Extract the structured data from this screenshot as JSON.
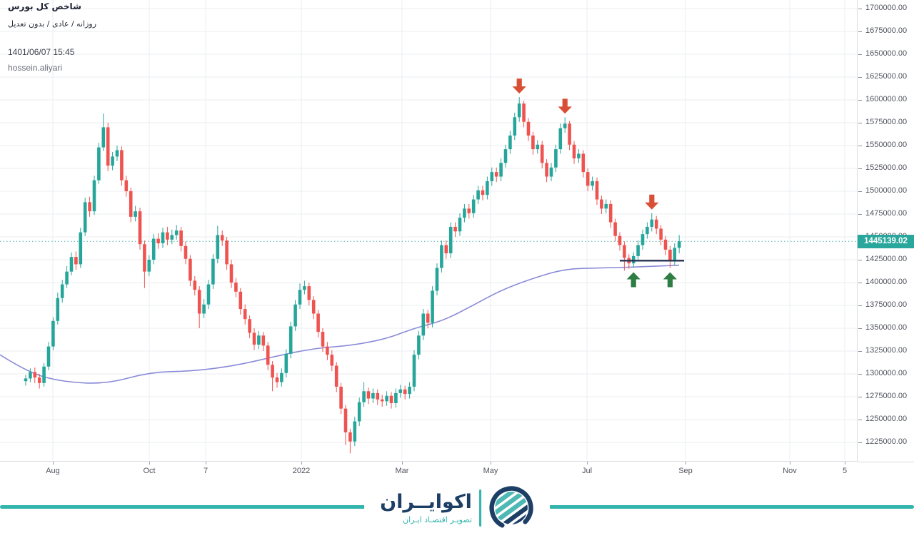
{
  "legend": {
    "title": "شاخص کل بورس",
    "subtitle": "روزانه / عادی / بدون تعدیل",
    "datetime": "1401/06/07 15:45",
    "username": "hossein.aliyari"
  },
  "axis": {
    "last_price_label": "1445139.02"
  },
  "footer": {
    "brand": "اکوایــران",
    "tagline": "تصویـر اقتصـاد ایـران"
  },
  "colors": {
    "up": "#26a69a",
    "down": "#ef5350",
    "ma_line": "#8a8ad8",
    "support_line": "#283352",
    "arrow_down": "#d94f35",
    "arrow_up": "#2e7d44",
    "grid": "#ebedf0",
    "dotted_price_line": "#3aa79d",
    "price_tag_bg": "#2aa79d",
    "brand_navy": "#1d3f66",
    "brand_teal": "#31b5ac"
  },
  "chart_data": {
    "type": "candlestick",
    "title": "شاخص کل بورس",
    "timeframe": "روزانه / عادی / بدون تعدیل",
    "last_price": 1445139.02,
    "price_step": 25000,
    "ylim": [
      1212000,
      1706000
    ],
    "grid": "on",
    "y_ticks": [
      "1700000.00",
      "1675000.00",
      "1650000.00",
      "1625000.00",
      "1600000.00",
      "1575000.00",
      "1550000.00",
      "1525000.00",
      "1500000.00",
      "1475000.00",
      "1450000.00",
      "1425000.00",
      "1400000.00",
      "1375000.00",
      "1350000.00",
      "1325000.00",
      "1300000.00",
      "1275000.00",
      "1250000.00",
      "1225000.00"
    ],
    "x_ticks": [
      {
        "label": "Aug",
        "x": 74
      },
      {
        "label": "Oct",
        "x": 209
      },
      {
        "label": "7",
        "x": 288
      },
      {
        "label": "2022",
        "x": 422
      },
      {
        "label": "Mar",
        "x": 563
      },
      {
        "label": "May",
        "x": 687
      },
      {
        "label": "Jul",
        "x": 822
      },
      {
        "label": "Sep",
        "x": 960
      },
      {
        "label": "Nov",
        "x": 1106
      },
      {
        "label": "5",
        "x": 1183
      }
    ],
    "candles": [
      [
        1292000,
        1299000,
        1287000,
        1295000
      ],
      [
        1295000,
        1306000,
        1291000,
        1302000
      ],
      [
        1302000,
        1307000,
        1290000,
        1296000
      ],
      [
        1296000,
        1300000,
        1284000,
        1290000
      ],
      [
        1290000,
        1312000,
        1286000,
        1308000
      ],
      [
        1308000,
        1335000,
        1304000,
        1330000
      ],
      [
        1330000,
        1362000,
        1326000,
        1358000
      ],
      [
        1358000,
        1389000,
        1354000,
        1383000
      ],
      [
        1383000,
        1403000,
        1378000,
        1398000
      ],
      [
        1398000,
        1418000,
        1394000,
        1412000
      ],
      [
        1412000,
        1433000,
        1408000,
        1428000
      ],
      [
        1428000,
        1434000,
        1414000,
        1420000
      ],
      [
        1420000,
        1460000,
        1416000,
        1455000
      ],
      [
        1455000,
        1493000,
        1451000,
        1488000
      ],
      [
        1488000,
        1494000,
        1472000,
        1478000
      ],
      [
        1478000,
        1517000,
        1474000,
        1512000
      ],
      [
        1512000,
        1553000,
        1508000,
        1548000
      ],
      [
        1548000,
        1585000,
        1544000,
        1570000
      ],
      [
        1570000,
        1575000,
        1522000,
        1528000
      ],
      [
        1528000,
        1543000,
        1523000,
        1538000
      ],
      [
        1538000,
        1550000,
        1533000,
        1545000
      ],
      [
        1545000,
        1549000,
        1506000,
        1512000
      ],
      [
        1512000,
        1517000,
        1494000,
        1500000
      ],
      [
        1500000,
        1504000,
        1466000,
        1472000
      ],
      [
        1472000,
        1484000,
        1467000,
        1478000
      ],
      [
        1478000,
        1482000,
        1436000,
        1442000
      ],
      [
        1442000,
        1446000,
        1394000,
        1412000
      ],
      [
        1412000,
        1430000,
        1407000,
        1425000
      ],
      [
        1425000,
        1453000,
        1420000,
        1448000
      ],
      [
        1448000,
        1454000,
        1437000,
        1443000
      ],
      [
        1443000,
        1460000,
        1438000,
        1455000
      ],
      [
        1455000,
        1461000,
        1441000,
        1447000
      ],
      [
        1447000,
        1458000,
        1442000,
        1452000
      ],
      [
        1452000,
        1463000,
        1447000,
        1457000
      ],
      [
        1457000,
        1461000,
        1434000,
        1440000
      ],
      [
        1440000,
        1445000,
        1420000,
        1426000
      ],
      [
        1426000,
        1430000,
        1396000,
        1402000
      ],
      [
        1402000,
        1407000,
        1386000,
        1392000
      ],
      [
        1392000,
        1396000,
        1350000,
        1366000
      ],
      [
        1366000,
        1382000,
        1361000,
        1376000
      ],
      [
        1376000,
        1403000,
        1371000,
        1398000
      ],
      [
        1398000,
        1431000,
        1393000,
        1426000
      ],
      [
        1426000,
        1462000,
        1421000,
        1452000
      ],
      [
        1452000,
        1457000,
        1440000,
        1446000
      ],
      [
        1446000,
        1450000,
        1414000,
        1420000
      ],
      [
        1420000,
        1425000,
        1394000,
        1400000
      ],
      [
        1400000,
        1405000,
        1384000,
        1390000
      ],
      [
        1390000,
        1394000,
        1365000,
        1371000
      ],
      [
        1371000,
        1376000,
        1354000,
        1360000
      ],
      [
        1360000,
        1364000,
        1339000,
        1345000
      ],
      [
        1345000,
        1350000,
        1326000,
        1332000
      ],
      [
        1332000,
        1347000,
        1327000,
        1342000
      ],
      [
        1342000,
        1346000,
        1325000,
        1331000
      ],
      [
        1331000,
        1335000,
        1304000,
        1310000
      ],
      [
        1310000,
        1314000,
        1281000,
        1296000
      ],
      [
        1296000,
        1301000,
        1285000,
        1291000
      ],
      [
        1291000,
        1306000,
        1286000,
        1301000
      ],
      [
        1301000,
        1327000,
        1296000,
        1322000
      ],
      [
        1322000,
        1357000,
        1317000,
        1352000
      ],
      [
        1352000,
        1381000,
        1347000,
        1376000
      ],
      [
        1376000,
        1399000,
        1371000,
        1392000
      ],
      [
        1392000,
        1402000,
        1387000,
        1396000
      ],
      [
        1396000,
        1400000,
        1375000,
        1381000
      ],
      [
        1381000,
        1385000,
        1360000,
        1366000
      ],
      [
        1366000,
        1370000,
        1340000,
        1346000
      ],
      [
        1346000,
        1350000,
        1324000,
        1330000
      ],
      [
        1330000,
        1335000,
        1315000,
        1321000
      ],
      [
        1321000,
        1326000,
        1303000,
        1309000
      ],
      [
        1309000,
        1313000,
        1280000,
        1286000
      ],
      [
        1286000,
        1290000,
        1256000,
        1262000
      ],
      [
        1262000,
        1266000,
        1222000,
        1236000
      ],
      [
        1236000,
        1240000,
        1213000,
        1226000
      ],
      [
        1226000,
        1253000,
        1221000,
        1248000
      ],
      [
        1248000,
        1274000,
        1243000,
        1269000
      ],
      [
        1269000,
        1291000,
        1264000,
        1281000
      ],
      [
        1281000,
        1285000,
        1267000,
        1273000
      ],
      [
        1273000,
        1284000,
        1268000,
        1279000
      ],
      [
        1279000,
        1283000,
        1266000,
        1272000
      ],
      [
        1272000,
        1277000,
        1264000,
        1270000
      ],
      [
        1270000,
        1281000,
        1265000,
        1276000
      ],
      [
        1276000,
        1280000,
        1262000,
        1268000
      ],
      [
        1268000,
        1284000,
        1263000,
        1279000
      ],
      [
        1279000,
        1288000,
        1274000,
        1283000
      ],
      [
        1283000,
        1287000,
        1272000,
        1278000
      ],
      [
        1278000,
        1291000,
        1273000,
        1286000
      ],
      [
        1286000,
        1326000,
        1281000,
        1321000
      ],
      [
        1321000,
        1347000,
        1316000,
        1342000
      ],
      [
        1342000,
        1371000,
        1337000,
        1366000
      ],
      [
        1366000,
        1370000,
        1350000,
        1356000
      ],
      [
        1356000,
        1396000,
        1351000,
        1391000
      ],
      [
        1391000,
        1421000,
        1386000,
        1416000
      ],
      [
        1416000,
        1446000,
        1411000,
        1441000
      ],
      [
        1441000,
        1446000,
        1426000,
        1432000
      ],
      [
        1432000,
        1466000,
        1427000,
        1461000
      ],
      [
        1461000,
        1466000,
        1450000,
        1456000
      ],
      [
        1456000,
        1476000,
        1451000,
        1471000
      ],
      [
        1471000,
        1486000,
        1466000,
        1481000
      ],
      [
        1481000,
        1486000,
        1470000,
        1476000
      ],
      [
        1476000,
        1496000,
        1471000,
        1491000
      ],
      [
        1491000,
        1506000,
        1486000,
        1501000
      ],
      [
        1501000,
        1506000,
        1490000,
        1496000
      ],
      [
        1496000,
        1516000,
        1491000,
        1511000
      ],
      [
        1511000,
        1526000,
        1506000,
        1521000
      ],
      [
        1521000,
        1526000,
        1510000,
        1516000
      ],
      [
        1516000,
        1536000,
        1511000,
        1531000
      ],
      [
        1531000,
        1551000,
        1526000,
        1546000
      ],
      [
        1546000,
        1566000,
        1541000,
        1561000
      ],
      [
        1561000,
        1586000,
        1556000,
        1581000
      ],
      [
        1581000,
        1603000,
        1576000,
        1596000
      ],
      [
        1596000,
        1599000,
        1570000,
        1576000
      ],
      [
        1576000,
        1580000,
        1555000,
        1561000
      ],
      [
        1561000,
        1565000,
        1540000,
        1546000
      ],
      [
        1546000,
        1556000,
        1541000,
        1551000
      ],
      [
        1551000,
        1555000,
        1525000,
        1531000
      ],
      [
        1531000,
        1535000,
        1510000,
        1516000
      ],
      [
        1516000,
        1531000,
        1511000,
        1526000
      ],
      [
        1526000,
        1551000,
        1521000,
        1546000
      ],
      [
        1546000,
        1574000,
        1541000,
        1569000
      ],
      [
        1569000,
        1581000,
        1564000,
        1574000
      ],
      [
        1574000,
        1577000,
        1545000,
        1551000
      ],
      [
        1551000,
        1555000,
        1530000,
        1536000
      ],
      [
        1536000,
        1546000,
        1531000,
        1541000
      ],
      [
        1541000,
        1545000,
        1515000,
        1521000
      ],
      [
        1521000,
        1525000,
        1500000,
        1506000
      ],
      [
        1506000,
        1516000,
        1501000,
        1511000
      ],
      [
        1511000,
        1515000,
        1485000,
        1491000
      ],
      [
        1491000,
        1495000,
        1475000,
        1481000
      ],
      [
        1481000,
        1491000,
        1476000,
        1486000
      ],
      [
        1486000,
        1490000,
        1460000,
        1466000
      ],
      [
        1466000,
        1470000,
        1445000,
        1451000
      ],
      [
        1451000,
        1455000,
        1435000,
        1441000
      ],
      [
        1441000,
        1445000,
        1413000,
        1427000
      ],
      [
        1427000,
        1431000,
        1415000,
        1421000
      ],
      [
        1421000,
        1433000,
        1416000,
        1429000
      ],
      [
        1429000,
        1446000,
        1424000,
        1441000
      ],
      [
        1441000,
        1458000,
        1436000,
        1453000
      ],
      [
        1453000,
        1466000,
        1448000,
        1461000
      ],
      [
        1461000,
        1476000,
        1456000,
        1469000
      ],
      [
        1469000,
        1473000,
        1453000,
        1459000
      ],
      [
        1459000,
        1463000,
        1441000,
        1447000
      ],
      [
        1447000,
        1451000,
        1430000,
        1436000
      ],
      [
        1436000,
        1440000,
        1416000,
        1424000
      ],
      [
        1424000,
        1443000,
        1419000,
        1438000
      ],
      [
        1438000,
        1452000,
        1432000,
        1445139
      ]
    ],
    "ma_points": [
      [
        0,
        1321000
      ],
      [
        40,
        1301000
      ],
      [
        90,
        1291000
      ],
      [
        150,
        1289000
      ],
      [
        210,
        1302000
      ],
      [
        270,
        1303000
      ],
      [
        330,
        1309000
      ],
      [
        390,
        1320000
      ],
      [
        440,
        1328000
      ],
      [
        490,
        1331000
      ],
      [
        540,
        1338000
      ],
      [
        580,
        1350000
      ],
      [
        620,
        1358000
      ],
      [
        660,
        1374000
      ],
      [
        700,
        1391000
      ],
      [
        740,
        1403000
      ],
      [
        790,
        1415000
      ],
      [
        840,
        1416000
      ],
      [
        890,
        1417000
      ],
      [
        951,
        1419000
      ]
    ],
    "markers": {
      "down_indices": [
        108,
        118,
        137
      ],
      "up_indices": [
        133,
        141
      ]
    },
    "support_line": {
      "price": 1424000,
      "x1": 868,
      "x2": 958
    }
  }
}
